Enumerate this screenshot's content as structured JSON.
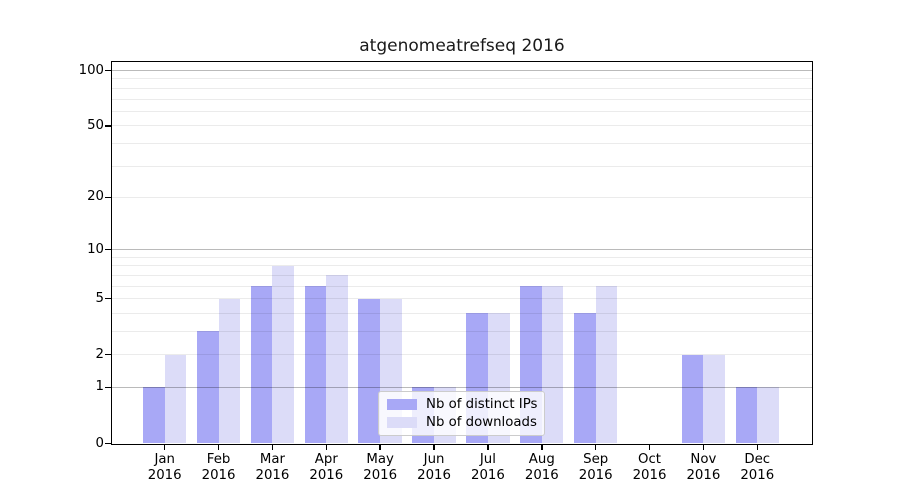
{
  "chart_data": {
    "type": "bar",
    "title": "atgenomeatrefseq 2016",
    "x": {
      "months": [
        "Jan",
        "Feb",
        "Mar",
        "Apr",
        "May",
        "Jun",
        "Jul",
        "Aug",
        "Sep",
        "Oct",
        "Nov",
        "Dec"
      ],
      "year": "2016"
    },
    "series": [
      {
        "name": "Nb of distinct IPs",
        "color": "#a8a8f6",
        "values": [
          1,
          3,
          6,
          6,
          5,
          1,
          4,
          6,
          4,
          0,
          2,
          1
        ]
      },
      {
        "name": "Nb of downloads",
        "color": "#dcdcf8",
        "values": [
          2,
          5,
          8,
          7,
          5,
          1,
          4,
          6,
          6,
          0,
          2,
          1
        ]
      }
    ],
    "y_axis": {
      "scale": "log1p",
      "tick_values": [
        0,
        1,
        2,
        5,
        10,
        20,
        50,
        100
      ],
      "tick_labels": [
        "0",
        "1",
        "2",
        "5",
        "10",
        "20",
        "50",
        "100"
      ],
      "ylim": [
        0,
        112
      ],
      "grid": true
    },
    "legend": {
      "position": "lower-center"
    }
  }
}
